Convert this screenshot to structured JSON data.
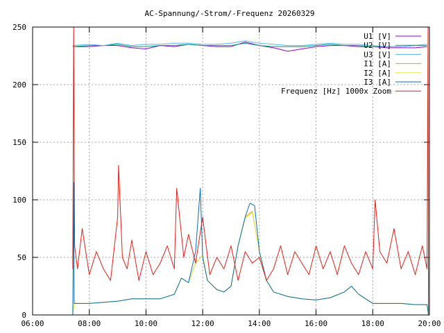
{
  "chart_data": {
    "type": "line",
    "title": "AC-Spannung/-Strom/-Frequenz 20260329",
    "xlabel": "",
    "ylabel": "",
    "x_range": [
      "06:00",
      "20:00"
    ],
    "ylim": [
      0,
      250
    ],
    "x_ticks": [
      "06:00",
      "08:00",
      "10:00",
      "12:00",
      "14:00",
      "16:00",
      "18:00",
      "20:00"
    ],
    "y_ticks": [
      0,
      50,
      100,
      150,
      200,
      250
    ],
    "grid": true,
    "legend_position": "top-right",
    "series": [
      {
        "name": "U1 [V]",
        "color": "#9400d3",
        "points": [
          [
            "07:25",
            233
          ],
          [
            "08:00",
            233
          ],
          [
            "08:30",
            234
          ],
          [
            "09:00",
            234
          ],
          [
            "09:30",
            232
          ],
          [
            "10:00",
            231
          ],
          [
            "10:30",
            234
          ],
          [
            "11:00",
            233
          ],
          [
            "11:30",
            235
          ],
          [
            "12:00",
            234
          ],
          [
            "12:30",
            233
          ],
          [
            "13:00",
            233
          ],
          [
            "13:30",
            237
          ],
          [
            "14:00",
            234
          ],
          [
            "14:30",
            232
          ],
          [
            "15:00",
            229
          ],
          [
            "15:30",
            231
          ],
          [
            "16:00",
            233
          ],
          [
            "16:30",
            234
          ],
          [
            "17:00",
            234
          ],
          [
            "17:30",
            233
          ],
          [
            "18:00",
            233
          ],
          [
            "18:30",
            232
          ],
          [
            "19:00",
            232
          ],
          [
            "19:30",
            232
          ],
          [
            "19:55",
            233
          ]
        ]
      },
      {
        "name": "U2 [V]",
        "color": "#009e73",
        "points": [
          [
            "07:25",
            233
          ],
          [
            "08:00",
            234
          ],
          [
            "08:30",
            234
          ],
          [
            "09:00",
            235
          ],
          [
            "09:30",
            233
          ],
          [
            "10:00",
            233
          ],
          [
            "10:30",
            234
          ],
          [
            "11:00",
            234
          ],
          [
            "11:30",
            235
          ],
          [
            "12:00",
            234
          ],
          [
            "12:30",
            234
          ],
          [
            "13:00",
            234
          ],
          [
            "13:30",
            236
          ],
          [
            "14:00",
            234
          ],
          [
            "14:30",
            233
          ],
          [
            "15:00",
            233
          ],
          [
            "15:30",
            233
          ],
          [
            "16:00",
            234
          ],
          [
            "16:30",
            235
          ],
          [
            "17:00",
            234
          ],
          [
            "17:30",
            234
          ],
          [
            "18:00",
            233
          ],
          [
            "18:30",
            233
          ],
          [
            "19:00",
            233
          ],
          [
            "19:30",
            234
          ],
          [
            "19:55",
            234
          ]
        ]
      },
      {
        "name": "U3 [V]",
        "color": "#56b4e9",
        "points": [
          [
            "07:25",
            234
          ],
          [
            "08:00",
            235
          ],
          [
            "08:30",
            234
          ],
          [
            "09:00",
            236
          ],
          [
            "09:30",
            234
          ],
          [
            "10:00",
            235
          ],
          [
            "10:30",
            235
          ],
          [
            "11:00",
            236
          ],
          [
            "11:30",
            236
          ],
          [
            "12:00",
            235
          ],
          [
            "12:30",
            235
          ],
          [
            "13:00",
            236
          ],
          [
            "13:30",
            238
          ],
          [
            "14:00",
            236
          ],
          [
            "14:30",
            235
          ],
          [
            "15:00",
            234
          ],
          [
            "15:30",
            234
          ],
          [
            "16:00",
            235
          ],
          [
            "16:30",
            236
          ],
          [
            "17:00",
            235
          ],
          [
            "17:30",
            235
          ],
          [
            "18:00",
            234
          ],
          [
            "18:30",
            233
          ],
          [
            "19:00",
            233
          ],
          [
            "19:30",
            234
          ],
          [
            "19:55",
            235
          ]
        ]
      },
      {
        "name": "I1 [A]",
        "color": "#e69f00",
        "points": [
          [
            "07:25",
            0
          ],
          [
            "07:28",
            10
          ],
          [
            "08:00",
            10
          ],
          [
            "08:30",
            11
          ],
          [
            "09:00",
            12
          ],
          [
            "09:30",
            14
          ],
          [
            "10:00",
            14
          ],
          [
            "10:30",
            14
          ],
          [
            "11:00",
            18
          ],
          [
            "11:15",
            32
          ],
          [
            "11:30",
            28
          ],
          [
            "11:45",
            45
          ],
          [
            "12:00",
            52
          ],
          [
            "12:10",
            30
          ],
          [
            "12:30",
            22
          ],
          [
            "12:45",
            20
          ],
          [
            "13:00",
            25
          ],
          [
            "13:15",
            60
          ],
          [
            "13:30",
            85
          ],
          [
            "13:45",
            90
          ],
          [
            "14:00",
            55
          ],
          [
            "14:15",
            30
          ],
          [
            "14:30",
            20
          ],
          [
            "15:00",
            16
          ],
          [
            "15:30",
            14
          ],
          [
            "16:00",
            13
          ],
          [
            "16:30",
            15
          ],
          [
            "17:00",
            20
          ],
          [
            "17:15",
            25
          ],
          [
            "17:30",
            18
          ],
          [
            "18:00",
            10
          ],
          [
            "18:30",
            10
          ],
          [
            "19:00",
            10
          ],
          [
            "19:30",
            9
          ],
          [
            "19:55",
            9
          ],
          [
            "19:58",
            0
          ]
        ]
      },
      {
        "name": "I2 [A]",
        "color": "#f0e442",
        "points": [
          [
            "07:25",
            0
          ],
          [
            "07:28",
            10
          ],
          [
            "08:00",
            10
          ],
          [
            "08:30",
            11
          ],
          [
            "09:00",
            12
          ],
          [
            "09:30",
            14
          ],
          [
            "10:00",
            14
          ],
          [
            "10:30",
            14
          ],
          [
            "11:00",
            18
          ],
          [
            "11:15",
            32
          ],
          [
            "11:30",
            28
          ],
          [
            "11:45",
            45
          ],
          [
            "12:00",
            52
          ],
          [
            "12:10",
            30
          ],
          [
            "12:30",
            22
          ],
          [
            "12:45",
            20
          ],
          [
            "13:00",
            25
          ],
          [
            "13:15",
            60
          ],
          [
            "13:30",
            84
          ],
          [
            "13:45",
            89
          ],
          [
            "14:00",
            55
          ],
          [
            "14:15",
            30
          ],
          [
            "14:30",
            20
          ],
          [
            "15:00",
            16
          ],
          [
            "15:30",
            14
          ],
          [
            "16:00",
            13
          ],
          [
            "16:30",
            15
          ],
          [
            "17:00",
            20
          ],
          [
            "17:15",
            25
          ],
          [
            "17:30",
            18
          ],
          [
            "18:00",
            10
          ],
          [
            "18:30",
            10
          ],
          [
            "19:00",
            10
          ],
          [
            "19:30",
            9
          ],
          [
            "19:55",
            9
          ],
          [
            "19:58",
            0
          ]
        ]
      },
      {
        "name": "I3 [A]",
        "color": "#0072b2",
        "points": [
          [
            "07:25",
            0
          ],
          [
            "07:27",
            115
          ],
          [
            "07:28",
            10
          ],
          [
            "08:00",
            10
          ],
          [
            "08:30",
            11
          ],
          [
            "09:00",
            12
          ],
          [
            "09:30",
            14
          ],
          [
            "10:00",
            14
          ],
          [
            "10:30",
            14
          ],
          [
            "11:00",
            18
          ],
          [
            "11:15",
            32
          ],
          [
            "11:30",
            28
          ],
          [
            "11:45",
            55
          ],
          [
            "11:55",
            110
          ],
          [
            "12:00",
            50
          ],
          [
            "12:10",
            30
          ],
          [
            "12:30",
            22
          ],
          [
            "12:45",
            20
          ],
          [
            "13:00",
            25
          ],
          [
            "13:15",
            60
          ],
          [
            "13:30",
            85
          ],
          [
            "13:40",
            97
          ],
          [
            "13:50",
            95
          ],
          [
            "14:00",
            55
          ],
          [
            "14:15",
            30
          ],
          [
            "14:30",
            20
          ],
          [
            "15:00",
            16
          ],
          [
            "15:30",
            14
          ],
          [
            "16:00",
            13
          ],
          [
            "16:30",
            15
          ],
          [
            "17:00",
            20
          ],
          [
            "17:15",
            25
          ],
          [
            "17:30",
            18
          ],
          [
            "18:00",
            10
          ],
          [
            "18:30",
            10
          ],
          [
            "19:00",
            10
          ],
          [
            "19:30",
            9
          ],
          [
            "19:55",
            9
          ],
          [
            "19:58",
            0
          ]
        ]
      },
      {
        "name": "Frequenz [Hz] 1000x Zoom",
        "color": "#e51e10",
        "points": [
          [
            "07:25",
            40
          ],
          [
            "07:27",
            250
          ],
          [
            "07:29",
            60
          ],
          [
            "07:35",
            40
          ],
          [
            "07:45",
            75
          ],
          [
            "08:00",
            35
          ],
          [
            "08:15",
            55
          ],
          [
            "08:30",
            40
          ],
          [
            "08:45",
            30
          ],
          [
            "09:00",
            85
          ],
          [
            "09:02",
            130
          ],
          [
            "09:10",
            50
          ],
          [
            "09:20",
            40
          ],
          [
            "09:30",
            65
          ],
          [
            "09:45",
            30
          ],
          [
            "10:00",
            55
          ],
          [
            "10:15",
            35
          ],
          [
            "10:30",
            45
          ],
          [
            "10:45",
            60
          ],
          [
            "11:00",
            40
          ],
          [
            "11:05",
            110
          ],
          [
            "11:20",
            50
          ],
          [
            "11:30",
            70
          ],
          [
            "11:45",
            45
          ],
          [
            "12:00",
            85
          ],
          [
            "12:15",
            35
          ],
          [
            "12:30",
            50
          ],
          [
            "12:45",
            40
          ],
          [
            "13:00",
            60
          ],
          [
            "13:15",
            30
          ],
          [
            "13:30",
            55
          ],
          [
            "13:45",
            45
          ],
          [
            "14:00",
            50
          ],
          [
            "14:15",
            30
          ],
          [
            "14:30",
            40
          ],
          [
            "14:45",
            60
          ],
          [
            "15:00",
            35
          ],
          [
            "15:15",
            55
          ],
          [
            "15:30",
            45
          ],
          [
            "15:45",
            35
          ],
          [
            "16:00",
            60
          ],
          [
            "16:15",
            40
          ],
          [
            "16:30",
            55
          ],
          [
            "16:45",
            35
          ],
          [
            "17:00",
            60
          ],
          [
            "17:15",
            45
          ],
          [
            "17:30",
            35
          ],
          [
            "17:45",
            55
          ],
          [
            "18:00",
            40
          ],
          [
            "18:05",
            100
          ],
          [
            "18:15",
            55
          ],
          [
            "18:30",
            45
          ],
          [
            "18:45",
            75
          ],
          [
            "19:00",
            40
          ],
          [
            "19:15",
            55
          ],
          [
            "19:30",
            35
          ],
          [
            "19:45",
            60
          ],
          [
            "19:55",
            40
          ],
          [
            "19:57",
            250
          ],
          [
            "19:58",
            0
          ]
        ]
      }
    ]
  }
}
